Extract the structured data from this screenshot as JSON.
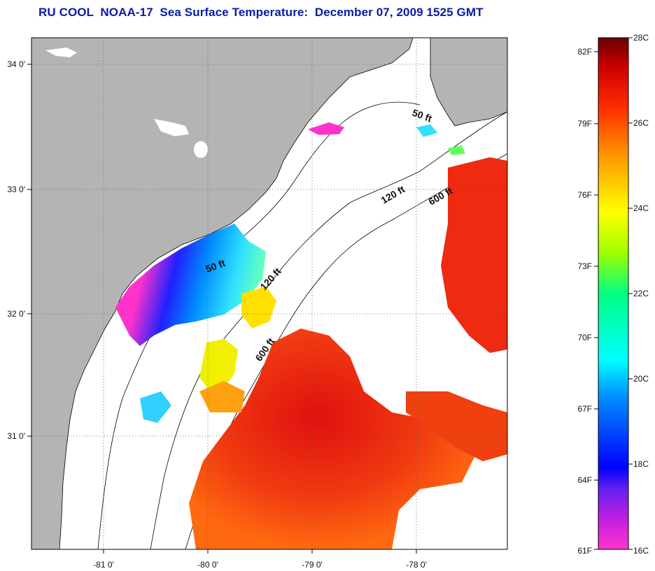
{
  "title": "RU COOL  NOAA-17  Sea Surface Temperature:  December 07, 2009 1525 GMT",
  "map": {
    "lon_ticks": [
      "-81 0'",
      "-80 0'",
      "-79 0'",
      "-78 0'"
    ],
    "lat_ticks": [
      "34 0'",
      "33 0'",
      "32 0'",
      "31 0'"
    ],
    "contour_labels": [
      "50 ft",
      "120 ft",
      "600 ft",
      "50 ft",
      "120 ft",
      "600 ft"
    ],
    "colors": {
      "land": "#b4b4b4",
      "ocean_nodata": "#ffffff",
      "coastline": "#000000"
    }
  },
  "colorbar": {
    "fahrenheit_labels": [
      "82F",
      "79F",
      "76F",
      "73F",
      "70F",
      "67F",
      "64F",
      "61F"
    ],
    "celsius_labels": [
      "28C",
      "26C",
      "24C",
      "22C",
      "20C",
      "18C",
      "16C"
    ],
    "range_c": [
      16,
      28
    ],
    "range_f": [
      61,
      82
    ],
    "gradient": [
      "#ff33cc",
      "#a020f0",
      "#0000ff",
      "#0080ff",
      "#00ffff",
      "#00ff80",
      "#80ff00",
      "#ffff00",
      "#ffa000",
      "#ff4000",
      "#e00000",
      "#700000"
    ]
  }
}
